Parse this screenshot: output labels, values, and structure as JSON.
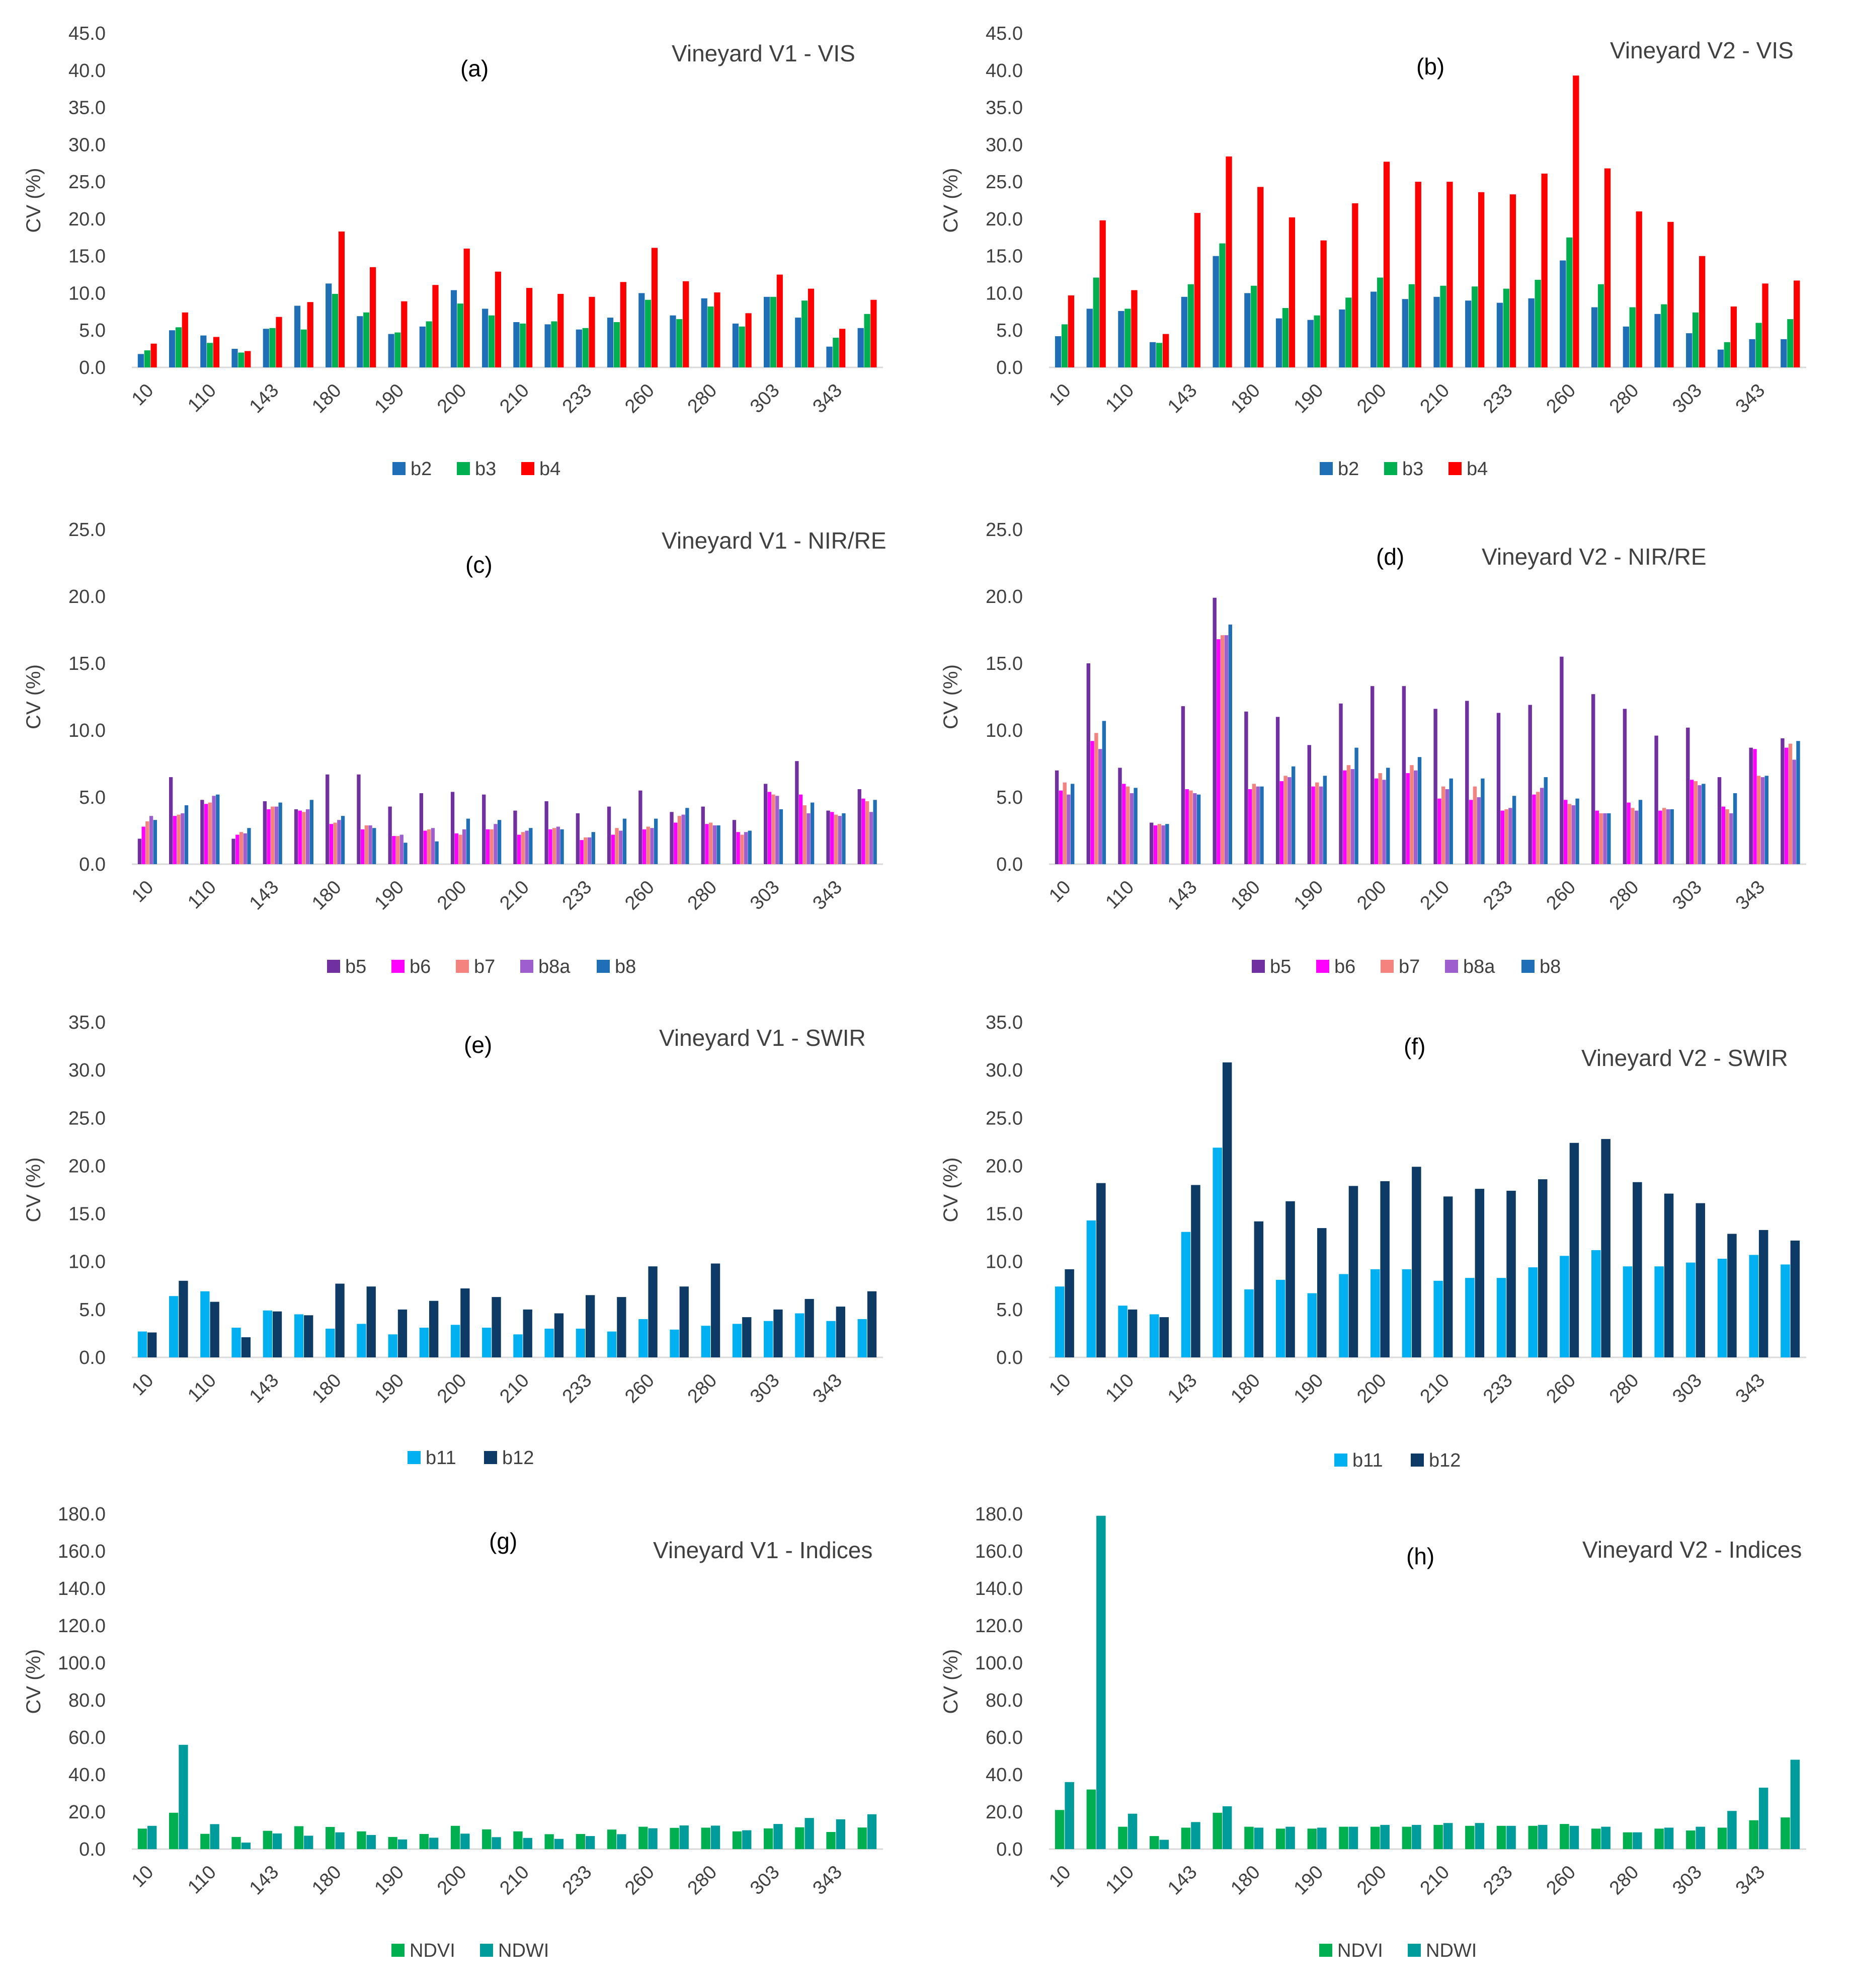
{
  "panels": [
    {
      "id": "a",
      "label": "(a)",
      "title": "Vineyard V1  - VIS",
      "chart_data": {
        "type": "bar",
        "ylabel": "CV (%)",
        "ylim": [
          0,
          45
        ],
        "ystep": 5,
        "categories": [
          "10",
          "",
          "110",
          "",
          "143",
          "",
          "180",
          "",
          "190",
          "",
          "200",
          "",
          "210",
          "",
          "233",
          "",
          "260",
          "",
          "280",
          "",
          "303",
          "",
          "343",
          ""
        ],
        "series": [
          {
            "name": "b2",
            "color": "#1F6FB6",
            "values": [
              1.8,
              5.0,
              4.3,
              2.5,
              5.2,
              8.3,
              11.3,
              6.9,
              4.5,
              5.5,
              10.4,
              7.9,
              6.1,
              5.8,
              5.1,
              6.7,
              10.0,
              7.0,
              9.3,
              5.9,
              9.5,
              6.7,
              2.8,
              5.3
            ]
          },
          {
            "name": "b3",
            "color": "#00B050",
            "values": [
              2.3,
              5.4,
              3.3,
              2.0,
              5.3,
              5.1,
              9.9,
              7.4,
              4.7,
              6.2,
              8.6,
              7.0,
              5.9,
              6.2,
              5.3,
              6.1,
              9.1,
              6.5,
              8.2,
              5.5,
              9.5,
              9.0,
              4.0,
              7.2
            ]
          },
          {
            "name": "b4",
            "color": "#FF0000",
            "values": [
              3.2,
              7.4,
              4.1,
              2.2,
              6.8,
              8.8,
              18.3,
              13.5,
              8.9,
              11.1,
              16.0,
              12.9,
              10.7,
              9.9,
              9.5,
              11.5,
              16.1,
              11.6,
              10.1,
              7.3,
              12.5,
              10.6,
              5.2,
              9.1
            ]
          }
        ],
        "legend": "bottom"
      }
    },
    {
      "id": "b",
      "label": "(b)",
      "title": "Vineyard V2  - VIS",
      "chart_data": {
        "type": "bar",
        "ylabel": "CV (%)",
        "ylim": [
          0,
          45
        ],
        "ystep": 5,
        "categories": [
          "10",
          "",
          "110",
          "",
          "143",
          "",
          "180",
          "",
          "190",
          "",
          "200",
          "",
          "210",
          "",
          "233",
          "",
          "260",
          "",
          "280",
          "",
          "303",
          "",
          "343",
          ""
        ],
        "series": [
          {
            "name": "b2",
            "color": "#1F6FB6",
            "values": [
              4.2,
              7.9,
              7.6,
              3.4,
              9.5,
              15.0,
              10.0,
              6.6,
              6.4,
              7.8,
              10.2,
              9.2,
              9.5,
              9.0,
              8.7,
              9.3,
              14.4,
              8.1,
              5.5,
              7.2,
              4.6,
              2.4,
              3.8,
              3.8
            ]
          },
          {
            "name": "b3",
            "color": "#00B050",
            "values": [
              5.8,
              12.1,
              7.9,
              3.3,
              11.2,
              16.7,
              11.0,
              8.0,
              7.0,
              9.4,
              12.1,
              11.2,
              11.0,
              10.9,
              10.6,
              11.8,
              17.5,
              11.2,
              8.1,
              8.5,
              7.4,
              3.4,
              6.0,
              6.5
            ]
          },
          {
            "name": "b4",
            "color": "#FF0000",
            "values": [
              9.7,
              19.8,
              10.4,
              4.5,
              20.8,
              28.4,
              24.3,
              20.2,
              17.1,
              22.1,
              27.7,
              25.0,
              25.0,
              23.6,
              23.3,
              26.1,
              39.3,
              26.8,
              21.0,
              19.6,
              15.0,
              8.2,
              11.3,
              11.7
            ]
          }
        ],
        "legend": "bottom"
      }
    },
    {
      "id": "c",
      "label": "(c)",
      "title": "Vineyard V1 - NIR/RE",
      "chart_data": {
        "type": "bar",
        "ylabel": "CV (%)",
        "ylim": [
          0,
          25
        ],
        "ystep": 5,
        "categories": [
          "10",
          "",
          "110",
          "",
          "143",
          "",
          "180",
          "",
          "190",
          "",
          "200",
          "",
          "210",
          "",
          "233",
          "",
          "260",
          "",
          "280",
          "",
          "303",
          "",
          "343",
          ""
        ],
        "series": [
          {
            "name": "b5",
            "color": "#7030A0",
            "values": [
              1.9,
              6.5,
              4.8,
              1.9,
              4.7,
              4.1,
              6.7,
              6.7,
              4.3,
              5.3,
              5.4,
              5.2,
              4.0,
              4.7,
              3.8,
              4.3,
              5.5,
              3.9,
              4.3,
              3.3,
              6.0,
              7.7,
              4.0,
              5.6
            ]
          },
          {
            "name": "b6",
            "color": "#FF00FF",
            "values": [
              2.8,
              3.6,
              4.5,
              2.2,
              4.1,
              4.0,
              3.0,
              2.6,
              2.1,
              2.5,
              2.3,
              2.6,
              2.2,
              2.6,
              1.8,
              2.2,
              2.6,
              3.1,
              3.0,
              2.4,
              5.4,
              5.2,
              3.9,
              4.9
            ]
          },
          {
            "name": "b7",
            "color": "#F4827F",
            "values": [
              3.2,
              3.7,
              4.6,
              2.4,
              4.3,
              3.9,
              3.1,
              2.9,
              2.1,
              2.6,
              2.2,
              2.6,
              2.4,
              2.7,
              2.0,
              2.7,
              2.8,
              3.6,
              3.1,
              2.2,
              5.2,
              4.4,
              3.7,
              4.7
            ]
          },
          {
            "name": "b8a",
            "color": "#9E5ECE",
            "values": [
              3.6,
              3.8,
              5.1,
              2.3,
              4.3,
              4.1,
              3.3,
              2.9,
              2.2,
              2.7,
              2.6,
              3.0,
              2.5,
              2.8,
              2.0,
              2.5,
              2.7,
              3.7,
              2.9,
              2.4,
              5.1,
              3.8,
              3.6,
              3.9
            ]
          },
          {
            "name": "b8",
            "color": "#1F6FB6",
            "values": [
              3.3,
              4.4,
              5.2,
              2.7,
              4.6,
              4.8,
              3.6,
              2.7,
              1.6,
              1.7,
              3.4,
              3.3,
              2.7,
              2.6,
              2.4,
              3.4,
              3.4,
              4.2,
              2.9,
              2.5,
              4.1,
              4.6,
              3.8,
              4.8
            ]
          }
        ],
        "legend": "bottom"
      }
    },
    {
      "id": "d",
      "label": "(d)",
      "title": "Vineyard V2 - NIR/RE",
      "chart_data": {
        "type": "bar",
        "ylabel": "CV (%)",
        "ylim": [
          0,
          25
        ],
        "ystep": 5,
        "categories": [
          "10",
          "",
          "110",
          "",
          "143",
          "",
          "180",
          "",
          "190",
          "",
          "200",
          "",
          "210",
          "",
          "233",
          "",
          "260",
          "",
          "280",
          "",
          "303",
          "",
          "343",
          ""
        ],
        "series": [
          {
            "name": "b5",
            "color": "#7030A0",
            "values": [
              7.0,
              15.0,
              7.2,
              3.1,
              11.8,
              19.9,
              11.4,
              11.0,
              8.9,
              12.0,
              13.3,
              13.3,
              11.6,
              12.2,
              11.3,
              11.9,
              15.5,
              12.7,
              11.6,
              9.6,
              10.2,
              6.5,
              8.7,
              9.4
            ]
          },
          {
            "name": "b6",
            "color": "#FF00FF",
            "values": [
              5.5,
              9.2,
              6.0,
              2.9,
              5.6,
              16.8,
              5.6,
              6.2,
              5.8,
              7.0,
              6.4,
              6.8,
              4.9,
              4.8,
              4.0,
              5.2,
              4.8,
              4.0,
              4.6,
              4.0,
              6.3,
              4.3,
              8.6,
              8.7
            ]
          },
          {
            "name": "b7",
            "color": "#F4827F",
            "values": [
              6.1,
              9.8,
              5.8,
              3.0,
              5.5,
              17.1,
              6.0,
              6.6,
              6.1,
              7.4,
              6.8,
              7.4,
              5.8,
              5.8,
              4.1,
              5.4,
              4.5,
              3.8,
              4.2,
              4.2,
              6.2,
              4.1,
              6.6,
              9.0
            ]
          },
          {
            "name": "b8a",
            "color": "#9E5ECE",
            "values": [
              5.2,
              8.6,
              5.3,
              2.9,
              5.3,
              17.1,
              5.8,
              6.5,
              5.8,
              7.1,
              6.3,
              7.0,
              5.6,
              5.0,
              4.2,
              5.7,
              4.4,
              3.8,
              4.0,
              4.1,
              5.9,
              3.8,
              6.5,
              7.8
            ]
          },
          {
            "name": "b8",
            "color": "#1F6FB6",
            "values": [
              6.0,
              10.7,
              5.7,
              3.0,
              5.2,
              17.9,
              5.8,
              7.3,
              6.6,
              8.7,
              7.2,
              8.0,
              6.4,
              6.4,
              5.1,
              6.5,
              4.9,
              3.8,
              4.8,
              4.1,
              6.0,
              5.3,
              6.6,
              9.2
            ]
          }
        ],
        "legend": "bottom"
      }
    },
    {
      "id": "e",
      "label": "(e)",
      "title": "Vineyard V1 - SWIR",
      "chart_data": {
        "type": "bar",
        "ylabel": "CV (%)",
        "ylim": [
          0,
          35
        ],
        "ystep": 5,
        "categories": [
          "10",
          "",
          "110",
          "",
          "143",
          "",
          "180",
          "",
          "190",
          "",
          "200",
          "",
          "210",
          "",
          "233",
          "",
          "260",
          "",
          "280",
          "",
          "303",
          "",
          "343",
          ""
        ],
        "series": [
          {
            "name": "b11",
            "color": "#00B0F0",
            "values": [
              2.7,
              6.4,
              6.9,
              3.1,
              4.9,
              4.5,
              3.0,
              3.5,
              2.4,
              3.1,
              3.4,
              3.1,
              2.4,
              3.0,
              3.0,
              2.7,
              4.0,
              2.9,
              3.3,
              3.5,
              3.8,
              4.6,
              3.8,
              4.0
            ]
          },
          {
            "name": "b12",
            "color": "#0D3B66",
            "values": [
              2.6,
              8.0,
              5.8,
              2.1,
              4.8,
              4.4,
              7.7,
              7.4,
              5.0,
              5.9,
              7.2,
              6.3,
              5.0,
              4.6,
              6.5,
              6.3,
              9.5,
              7.4,
              9.8,
              4.2,
              5.0,
              6.1,
              5.3,
              6.9
            ]
          }
        ],
        "legend": "bottom"
      }
    },
    {
      "id": "f",
      "label": "(f)",
      "title": "Vineyard V2 - SWIR",
      "chart_data": {
        "type": "bar",
        "ylabel": "CV (%)",
        "ylim": [
          0,
          35
        ],
        "ystep": 5,
        "categories": [
          "10",
          "",
          "110",
          "",
          "143",
          "",
          "180",
          "",
          "190",
          "",
          "200",
          "",
          "210",
          "",
          "233",
          "",
          "260",
          "",
          "280",
          "",
          "303",
          "",
          "343",
          ""
        ],
        "series": [
          {
            "name": "b11",
            "color": "#00B0F0",
            "values": [
              7.4,
              14.3,
              5.4,
              4.5,
              13.1,
              21.9,
              7.1,
              8.1,
              6.7,
              8.7,
              9.2,
              9.2,
              8.0,
              8.3,
              8.3,
              9.4,
              10.6,
              11.2,
              9.5,
              9.5,
              9.9,
              10.3,
              10.7,
              9.7
            ]
          },
          {
            "name": "b12",
            "color": "#0D3B66",
            "values": [
              9.2,
              18.2,
              5.0,
              4.2,
              18.0,
              30.8,
              14.2,
              16.3,
              13.5,
              17.9,
              18.4,
              19.9,
              16.8,
              17.6,
              17.4,
              18.6,
              22.4,
              22.8,
              18.3,
              17.1,
              16.1,
              12.9,
              13.3,
              12.2
            ]
          }
        ],
        "legend": "bottom"
      }
    },
    {
      "id": "g",
      "label": "(g)",
      "title": "Vineyard V1 - Indices",
      "chart_data": {
        "type": "bar",
        "ylabel": "CV (%)",
        "ylim": [
          0,
          180
        ],
        "ystep": 20,
        "categories": [
          "10",
          "",
          "110",
          "",
          "143",
          "",
          "180",
          "",
          "190",
          "",
          "200",
          "",
          "210",
          "",
          "233",
          "",
          "260",
          "",
          "280",
          "",
          "303",
          "",
          "343",
          ""
        ],
        "series": [
          {
            "name": "NDVI",
            "color": "#00B050",
            "values": [
              11.0,
              19.5,
              8.2,
              6.5,
              9.8,
              12.3,
              11.9,
              9.5,
              6.5,
              8.1,
              12.5,
              10.6,
              9.5,
              8.0,
              8.1,
              10.5,
              12.0,
              11.4,
              11.5,
              9.5,
              11.1,
              11.7,
              9.2,
              11.6
            ]
          },
          {
            "name": "NDWI",
            "color": "#009B9B",
            "values": [
              12.5,
              56.0,
              13.4,
              3.5,
              8.4,
              7.2,
              9.0,
              7.6,
              5.2,
              6.1,
              8.3,
              6.4,
              6.0,
              5.5,
              7.0,
              8.0,
              11.2,
              12.7,
              12.6,
              10.1,
              13.5,
              16.7,
              16.0,
              18.7
            ]
          }
        ],
        "legend": "bottom"
      }
    },
    {
      "id": "h",
      "label": "(h)",
      "title": "Vineyard V2 - Indices",
      "chart_data": {
        "type": "bar",
        "ylabel": "CV (%)",
        "ylim": [
          0,
          180
        ],
        "ystep": 20,
        "categories": [
          "10",
          "",
          "110",
          "",
          "143",
          "",
          "180",
          "",
          "190",
          "",
          "200",
          "",
          "210",
          "",
          "233",
          "",
          "260",
          "",
          "280",
          "",
          "303",
          "",
          "343",
          ""
        ],
        "series": [
          {
            "name": "NDVI",
            "color": "#00B050",
            "values": [
              21.0,
              32.0,
              12.0,
              7.0,
              11.5,
              19.5,
              12.0,
              11.0,
              11.0,
              12.0,
              12.0,
              12.0,
              13.0,
              12.5,
              12.5,
              12.5,
              13.5,
              11.0,
              9.0,
              11.0,
              10.0,
              11.5,
              15.5,
              17.0
            ]
          },
          {
            "name": "NDWI",
            "color": "#009B9B",
            "values": [
              36.0,
              179.0,
              19.0,
              5.0,
              14.5,
              23.0,
              11.5,
              12.0,
              11.5,
              12.0,
              13.0,
              13.0,
              14.0,
              14.0,
              12.5,
              13.0,
              12.5,
              12.0,
              9.0,
              11.5,
              12.0,
              20.5,
              33.0,
              48.0
            ]
          }
        ],
        "legend": "bottom"
      }
    }
  ]
}
